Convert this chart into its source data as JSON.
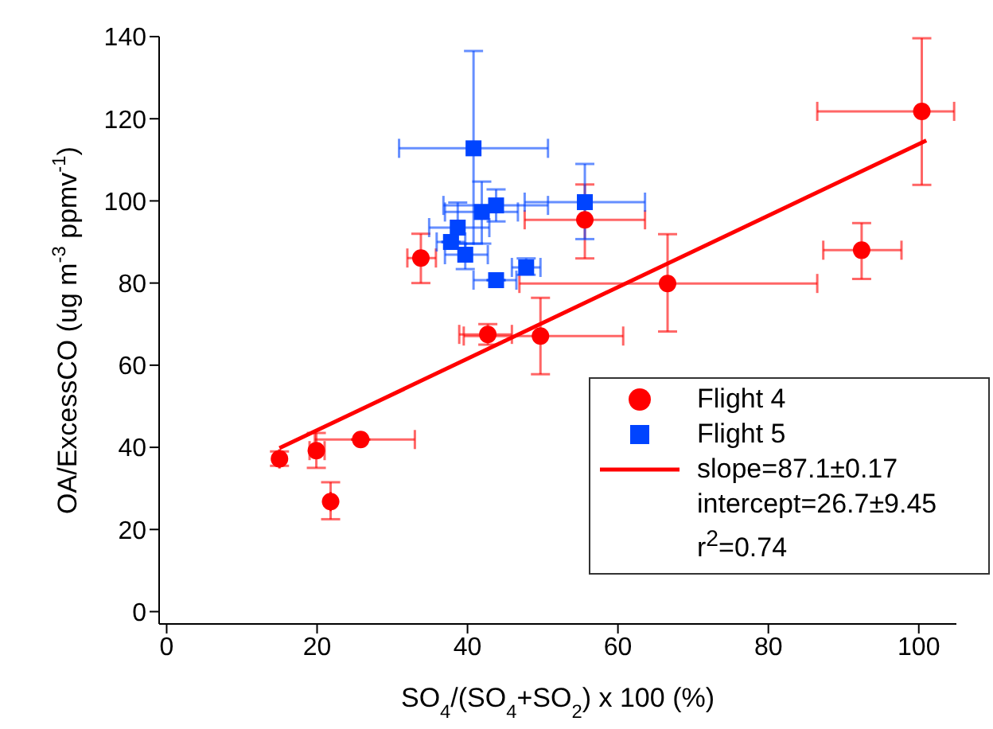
{
  "chart_data": {
    "type": "scatter",
    "xlabel": "SO$_{4}$/(SO$_{4}$+SO$_{2}$) x 100 (%)",
    "ylabel": "OA/ExcessCO (ug m$^{-3}$ ppmv$^{-1}$)",
    "xlim": [
      -1,
      105
    ],
    "xticks": [
      0,
      20,
      40,
      60,
      80,
      100
    ],
    "ylim": [
      -3,
      140
    ],
    "yticks": [
      0,
      20,
      40,
      60,
      80,
      100,
      120,
      140
    ],
    "legend": "bottom right",
    "annotations": [
      "intercept=26.7±9.45",
      "r$^{2}$=0.74"
    ],
    "series": [
      {
        "name": "Flight 4",
        "color": "#ff0000",
        "marker": "circle",
        "x": [
          15,
          19.9,
          21.8,
          25.8,
          33.8,
          42.7,
          49.7,
          55.6,
          66.6,
          92.4,
          100.4
        ],
        "values": [
          37.2,
          39.2,
          26.8,
          41.9,
          86.1,
          67.5,
          67.1,
          95.4,
          79.9,
          88.0,
          121.8
        ],
        "errors": [
          [
            35.5,
            39
          ],
          [
            35,
            43.5
          ],
          [
            22.5,
            31.5
          ],
          null,
          [
            80,
            92
          ],
          [
            65,
            70
          ],
          [
            57.8,
            76.4
          ],
          [
            86,
            104
          ],
          [
            68.2,
            91.9
          ],
          [
            81,
            94.6
          ],
          [
            103.9,
            139.6
          ]
        ],
        "xerrors": [
          null,
          [
            19,
            21
          ],
          null,
          [
            19.7,
            33
          ],
          [
            32,
            35.8
          ],
          [
            38.9,
            45.9
          ],
          [
            39.5,
            60.7
          ],
          [
            47.6,
            63.6
          ],
          [
            46.9,
            86.5
          ],
          [
            87.3,
            97.7
          ],
          [
            86.5,
            104.7
          ]
        ]
      },
      {
        "name": "Flight 5",
        "color": "#0044ff",
        "marker": "square",
        "x": [
          40.8,
          41.9,
          43.8,
          38.7,
          37.8,
          39.7,
          47.8,
          43.8,
          55.6
        ],
        "values": [
          112.8,
          97.3,
          98.9,
          93.5,
          90,
          86.9,
          83.8,
          80.7,
          99.7
        ],
        "errors": [
          [
            89.6,
            136.5
          ],
          [
            89.6,
            104.7
          ],
          [
            95,
            102.8
          ],
          [
            89.6,
            99.6
          ],
          null,
          [
            83.4,
            89.6
          ],
          [
            82,
            86
          ],
          null,
          [
            90.7,
            109
          ]
        ],
        "xerrors": [
          [
            30.9,
            50.7
          ],
          [
            37,
            46.7
          ],
          [
            36.8,
            50.7
          ],
          [
            34.9,
            42.9
          ],
          [
            35.9,
            39.7
          ],
          [
            37,
            42.7
          ],
          [
            45.9,
            49.7
          ],
          [
            40.8,
            46.5
          ],
          [
            47.6,
            63.6
          ]
        ]
      },
      {
        "name": "slope=87.1±0.17",
        "type": "line",
        "color": "#ff0000",
        "marker": "none",
        "x": [
          15,
          101
        ],
        "values": [
          39.8,
          114.7
        ]
      }
    ]
  }
}
